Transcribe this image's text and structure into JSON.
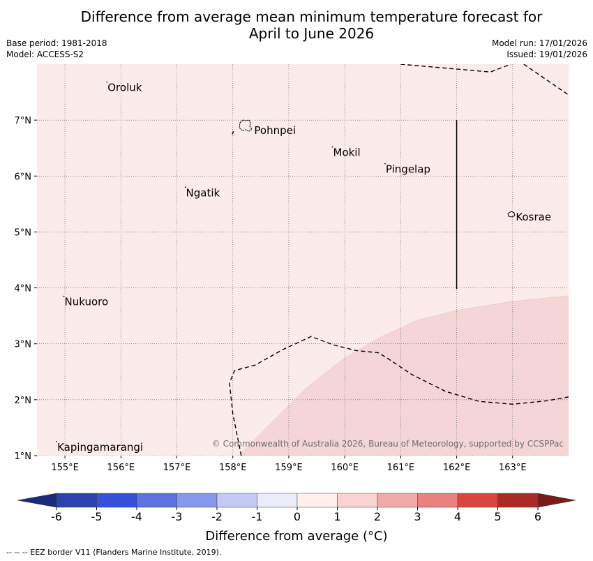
{
  "title": {
    "line1": "Difference from average mean minimum temperature forecast for",
    "line2": "April to June 2026"
  },
  "meta": {
    "base_period": "Base period: 1981-2018",
    "model": "Model: ACCESS-S2",
    "model_run": "Model run: 17/01/2026",
    "issued": "Issued: 19/01/2026"
  },
  "map": {
    "lon_range": [
      154.5,
      164.0
    ],
    "lat_range": [
      1.0,
      8.0
    ],
    "lon_ticks": [
      {
        "value": 155,
        "label": "155°E"
      },
      {
        "value": 156,
        "label": "156°E"
      },
      {
        "value": 157,
        "label": "157°E"
      },
      {
        "value": 158,
        "label": "158°E"
      },
      {
        "value": 159,
        "label": "159°E"
      },
      {
        "value": 160,
        "label": "160°E"
      },
      {
        "value": 161,
        "label": "161°E"
      },
      {
        "value": 162,
        "label": "162°E"
      },
      {
        "value": 163,
        "label": "163°E"
      }
    ],
    "lat_ticks": [
      {
        "value": 7,
        "label": "7°N"
      },
      {
        "value": 6,
        "label": "6°N"
      },
      {
        "value": 5,
        "label": "5°N"
      },
      {
        "value": 4,
        "label": "4°N"
      },
      {
        "value": 3,
        "label": "3°N"
      },
      {
        "value": 2,
        "label": "2°N"
      },
      {
        "value": 1,
        "label": "1°N"
      }
    ],
    "background_fill": "#fbebea",
    "anomaly_fill": "#f5d5d5",
    "anomaly_region_boundary": [
      [
        158.1,
        1.0
      ],
      [
        158.7,
        1.6
      ],
      [
        159.3,
        2.2
      ],
      [
        160.0,
        2.75
      ],
      [
        160.7,
        3.15
      ],
      [
        161.3,
        3.42
      ],
      [
        162.0,
        3.6
      ],
      [
        163.0,
        3.76
      ],
      [
        164.0,
        3.86
      ]
    ],
    "eez_lines": [
      [
        [
          157.99,
          6.75
        ],
        [
          158.01,
          6.8
        ]
      ],
      [
        [
          161.0,
          8.0
        ],
        [
          162.6,
          7.86
        ],
        [
          162.97,
          8.0
        ]
      ],
      [
        [
          163.2,
          8.0
        ],
        [
          164.0,
          7.45
        ]
      ],
      [
        [
          158.15,
          1.0
        ],
        [
          158.0,
          1.75
        ],
        [
          157.94,
          2.3
        ],
        [
          158.03,
          2.52
        ],
        [
          158.4,
          2.62
        ],
        [
          158.9,
          2.9
        ],
        [
          159.4,
          3.13
        ],
        [
          159.8,
          2.98
        ],
        [
          160.2,
          2.88
        ],
        [
          160.6,
          2.84
        ],
        [
          160.75,
          2.75
        ],
        [
          161.2,
          2.45
        ],
        [
          161.8,
          2.15
        ],
        [
          162.4,
          1.97
        ],
        [
          163.0,
          1.92
        ],
        [
          163.6,
          1.98
        ],
        [
          164.0,
          2.05
        ]
      ]
    ],
    "solid_boundary": [
      [
        162.0,
        7.0
      ],
      [
        162.0,
        3.98
      ]
    ],
    "islands": [
      {
        "name": "Oroluk",
        "lon": 155.75,
        "lat": 7.68
      },
      {
        "name": "Pohnpei",
        "lon": 158.22,
        "lat": 6.88
      },
      {
        "name": "Mokil",
        "lon": 159.78,
        "lat": 6.52
      },
      {
        "name": "Pingelap",
        "lon": 160.72,
        "lat": 6.22
      },
      {
        "name": "Ngatik",
        "lon": 157.15,
        "lat": 5.8
      },
      {
        "name": "Kosrae",
        "lon": 162.97,
        "lat": 5.32
      },
      {
        "name": "Nukuoro",
        "lon": 154.98,
        "lat": 3.85
      },
      {
        "name": "Kapingamarangi",
        "lon": 154.85,
        "lat": 1.25
      }
    ],
    "copyright": "© Commonwealth of Australia 2026, Bureau of Meteorology, supported by CCSPPac"
  },
  "colorbar": {
    "title": "Difference from average (°C)",
    "ticks": [
      "-6",
      "-5",
      "-4",
      "-3",
      "-2",
      "-1",
      "0",
      "1",
      "2",
      "3",
      "4",
      "5",
      "6"
    ],
    "below_color": "#1b2a7a",
    "above_color": "#7b1a1a",
    "colors": [
      "#2a43ad",
      "#3650dc",
      "#5a73e0",
      "#8698ea",
      "#c3c9f4",
      "#ebebfa",
      "#fff0ee",
      "#fad2d2",
      "#f0aaaa",
      "#e7827e",
      "#d9463e",
      "#a92a27"
    ]
  },
  "footnote": "--  --  -- EEZ border V11 (Flanders Marine Institute, 2019)."
}
